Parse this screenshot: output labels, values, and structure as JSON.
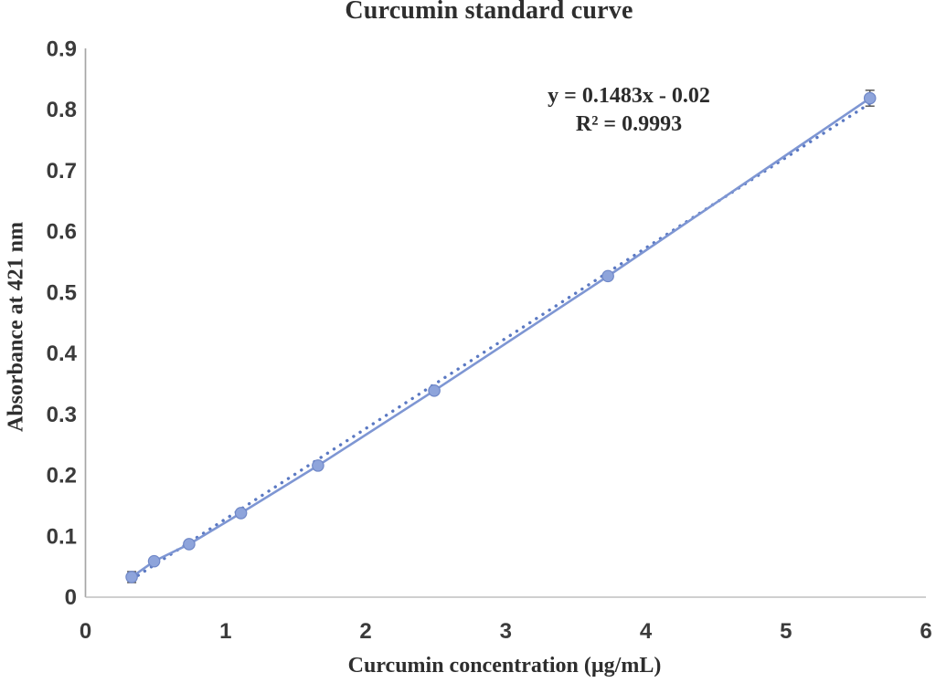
{
  "figure": {
    "title": "Curcumin standard curve"
  },
  "chart_data": {
    "type": "line",
    "title": "Curcumin standard curve",
    "xlabel": "Curcumin concentration (µg/mL)",
    "ylabel": "Absorbance at 421 nm",
    "x": [
      0.33,
      0.49,
      0.74,
      1.11,
      1.66,
      2.49,
      3.73,
      5.6
    ],
    "y": [
      0.033,
      0.059,
      0.087,
      0.138,
      0.216,
      0.339,
      0.527,
      0.819
    ],
    "y_errors": [
      0.009,
      0.003,
      0.003,
      0.003,
      0.003,
      0.003,
      0.003,
      0.013
    ],
    "marker": "circle",
    "trendline": {
      "equation_label": "y = 0.1483x - 0.02",
      "r2_label": "R² = 0.9993",
      "slope": 0.1483,
      "intercept": -0.02,
      "r_squared": 0.9993,
      "style": "dotted",
      "x_range": [
        0.33,
        5.6
      ]
    },
    "xlim": [
      0,
      6
    ],
    "ylim": [
      0,
      0.9
    ],
    "x_tick_values": [
      0,
      1,
      2,
      3,
      4,
      5,
      6
    ],
    "x_tick_labels": [
      "0",
      "1",
      "2",
      "3",
      "4",
      "5",
      "6"
    ],
    "y_tick_values": [
      0,
      0.1,
      0.2,
      0.3,
      0.4,
      0.5,
      0.6,
      0.7,
      0.8,
      0.9
    ],
    "y_tick_labels": [
      "0",
      "0.1",
      "0.2",
      "0.3",
      "0.4",
      "0.5",
      "0.6",
      "0.7",
      "0.8",
      "0.9"
    ],
    "grid": false,
    "legend": "none",
    "colors": {
      "series_line": "#7E96D3",
      "marker_fill": "#8EA4DB",
      "marker_edge": "#6F87C7",
      "trendline": "#5B79C3",
      "error_bar": "#595959",
      "y_axis_line": "#A6A6A6",
      "x_axis_line": "#BFBFBF",
      "tick_text": "#3b3b3b",
      "text": "#2e2e2e"
    }
  }
}
